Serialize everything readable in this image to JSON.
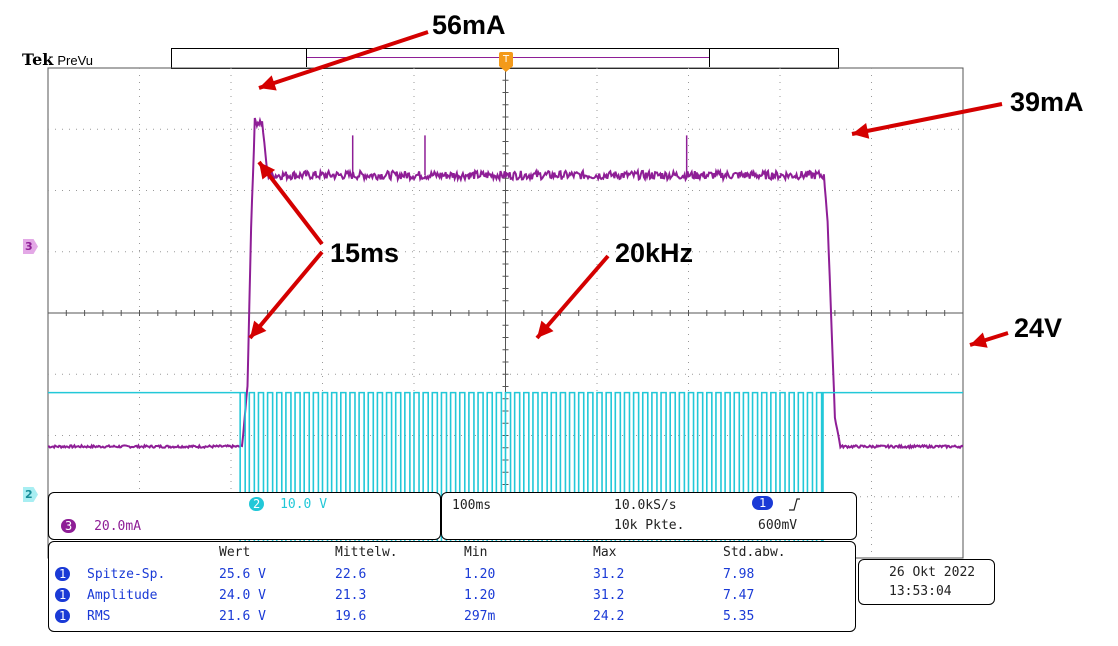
{
  "brand": {
    "logo": "Tek",
    "mode": "PreVu"
  },
  "colors": {
    "ch3": "#8e1e96",
    "ch2": "#22c8d8",
    "ch1": "#1a3ad6",
    "grid": "#9a9a9a",
    "arrow": "#d40000"
  },
  "annotations": {
    "peak": "56mA",
    "plateau": "39mA",
    "delay": "15ms",
    "freq": "20kHz",
    "volt": "24V"
  },
  "markers": {
    "ch3": "3",
    "ch2": "2",
    "ch1": "1",
    "trigger": "T"
  },
  "settings": {
    "ch2_scale": "10.0 V",
    "ch3_scale": "20.0mA",
    "timebase": "100ms",
    "sample_rate": "10.0kS/s",
    "record_length": "10k Pkte.",
    "trigger_level": "600mV",
    "trigger_slope_icon": "rising-edge-icon"
  },
  "measurements": {
    "headers": [
      "Wert",
      "Mittelw.",
      "Min",
      "Max",
      "Std.abw."
    ],
    "rows": [
      {
        "channel": "1",
        "name": "Spitze-Sp.",
        "values": [
          "25.6 V",
          "22.6",
          "1.20",
          "31.2",
          "7.98"
        ]
      },
      {
        "channel": "1",
        "name": "Amplitude",
        "values": [
          "24.0 V",
          "21.3",
          "1.20",
          "31.2",
          "7.47"
        ]
      },
      {
        "channel": "1",
        "name": "RMS",
        "values": [
          "21.6 V",
          "19.6",
          "297m",
          "24.2",
          "5.35"
        ]
      }
    ]
  },
  "datetime": {
    "date": "26 Okt  2022",
    "time": "13:53:04"
  },
  "chart_data": {
    "type": "line",
    "x_unit": "div",
    "xlim": [
      0,
      10
    ],
    "ylim": [
      -4,
      4
    ],
    "grid": true,
    "series": [
      {
        "name": "3",
        "x": [
          0,
          2.12,
          2.18,
          2.22,
          2.26,
          2.34,
          2.4,
          8.48,
          8.52,
          8.6,
          8.66,
          10
        ],
        "y": [
          -2.18,
          -2.18,
          -1.2,
          1.4,
          3.12,
          3.12,
          2.25,
          2.25,
          1.5,
          -1.7,
          -2.18,
          -2.18
        ],
        "spikes_x": [
          3.33,
          4.12,
          6.98
        ]
      },
      {
        "name": "2",
        "segments": [
          {
            "x": [
              0,
              2.1
            ],
            "state": "high"
          },
          {
            "x": [
              2.1,
              8.47
            ],
            "state": "pwm"
          },
          {
            "x": [
              8.47,
              10
            ],
            "state": "high"
          }
        ],
        "high": -1.3,
        "low": -3.85,
        "pulse_period": 0.1
      }
    ]
  }
}
